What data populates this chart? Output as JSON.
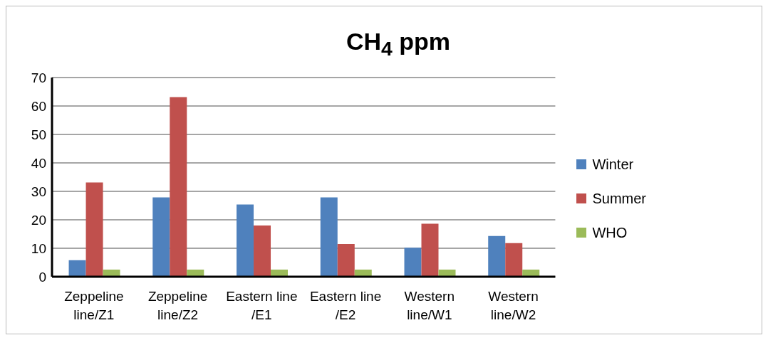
{
  "chart_data": {
    "type": "bar",
    "title": "CH$_{4}$ ppm",
    "categories": [
      "Zeppeline line/Z1",
      "Zeppeline line/Z2",
      "Eastern line /E1",
      "Eastern line /E2",
      "Western line/W1",
      "Western line/W2"
    ],
    "series": [
      {
        "name": "Winter",
        "color": "#4f81bd",
        "values": [
          5.8,
          27.9,
          25.4,
          27.9,
          10.2,
          14.3
        ]
      },
      {
        "name": "Summer",
        "color": "#c0504d",
        "values": [
          33.1,
          63.1,
          18.0,
          11.5,
          18.6,
          11.8
        ]
      },
      {
        "name": "WHO",
        "color": "#9bbb59",
        "values": [
          2.5,
          2.5,
          2.5,
          2.5,
          2.5,
          2.5
        ]
      }
    ],
    "ylim": [
      0,
      70
    ],
    "yticks": [
      0,
      10,
      20,
      30,
      40,
      50,
      60,
      70
    ],
    "grid": "y",
    "legend": "right"
  }
}
